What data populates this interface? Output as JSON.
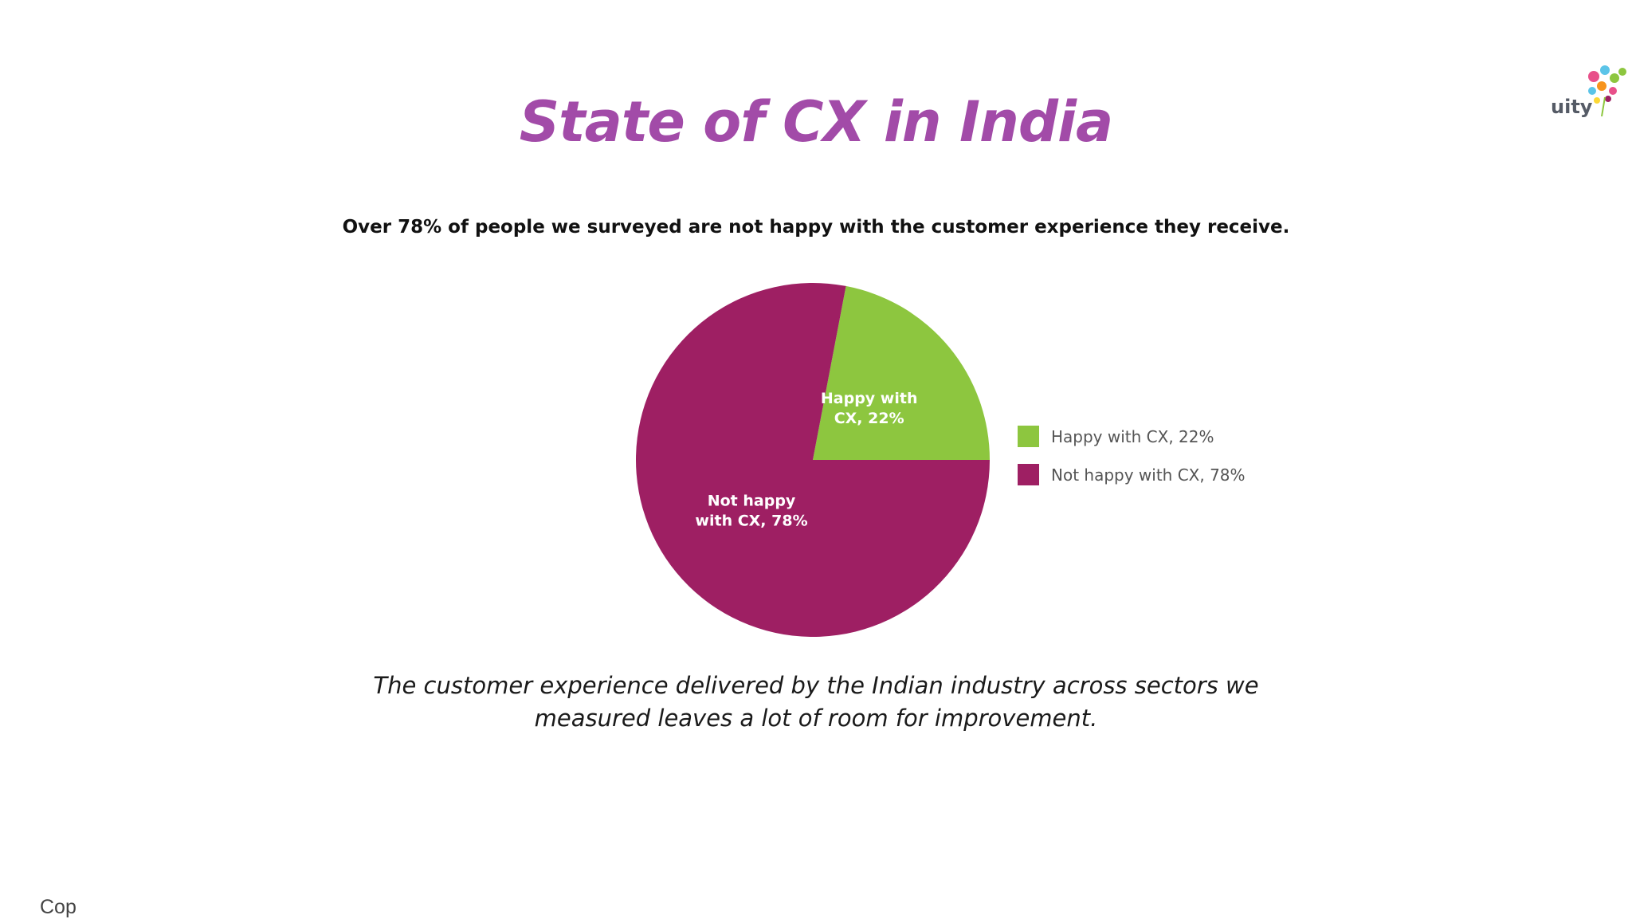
{
  "slide": {
    "title": "State of CX in India",
    "subtitle": "Over 78% of people we surveyed are not happy with the customer experience they receive.",
    "caption_line1": "The customer experience delivered by the Indian industry across sectors we",
    "caption_line2": "measured leaves a lot of room for improvement.",
    "copyright_fragment": "Cop",
    "logo_fragment": "uity"
  },
  "colors": {
    "title": "#a24ba8",
    "happy": "#8dc63f",
    "not_happy": "#9e1f63",
    "legend_text": "#555555",
    "slice_label": "#ffffff"
  },
  "chart_data": {
    "type": "pie",
    "title": "",
    "legend_placement": "right",
    "slices": [
      {
        "name": "Happy with CX",
        "value": 22,
        "label_line1": "Happy with",
        "label_line2": "CX, 22%",
        "legend": "Happy with CX, 22%",
        "color": "#8dc63f"
      },
      {
        "name": "Not happy with CX",
        "value": 78,
        "label_line1": "Not happy",
        "label_line2": "with CX, 78%",
        "legend": "Not happy with CX, 78%",
        "color": "#9e1f63"
      }
    ]
  }
}
